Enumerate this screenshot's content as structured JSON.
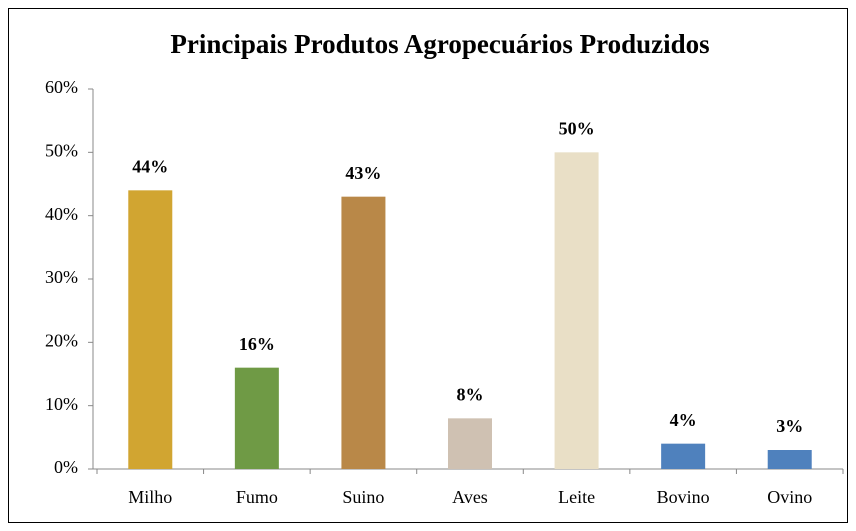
{
  "chart_data": {
    "type": "bar",
    "title": "Principais Produtos Agropecuários Produzidos",
    "categories": [
      "Milho",
      "Fumo",
      "Suino",
      "Aves",
      "Leite",
      "Bovino",
      "Ovino"
    ],
    "values": [
      44,
      16,
      43,
      8,
      50,
      4,
      3
    ],
    "value_labels": [
      "44%",
      "16%",
      "43%",
      "8%",
      "50%",
      "4%",
      "3%"
    ],
    "colors": [
      "#d1a531",
      "#6f9a45",
      "#b98848",
      "#cfc1b2",
      "#e9dfc6",
      "#4f81bd",
      "#4f81bd"
    ],
    "ylim": [
      0,
      60
    ],
    "yticks": [
      {
        "value": 0,
        "label": "0%"
      },
      {
        "value": 10,
        "label": "10%"
      },
      {
        "value": 20,
        "label": "20%"
      },
      {
        "value": 30,
        "label": "30%"
      },
      {
        "value": 40,
        "label": "40%"
      },
      {
        "value": 50,
        "label": "50%"
      },
      {
        "value": 60,
        "label": "60%"
      }
    ],
    "grid": false
  }
}
